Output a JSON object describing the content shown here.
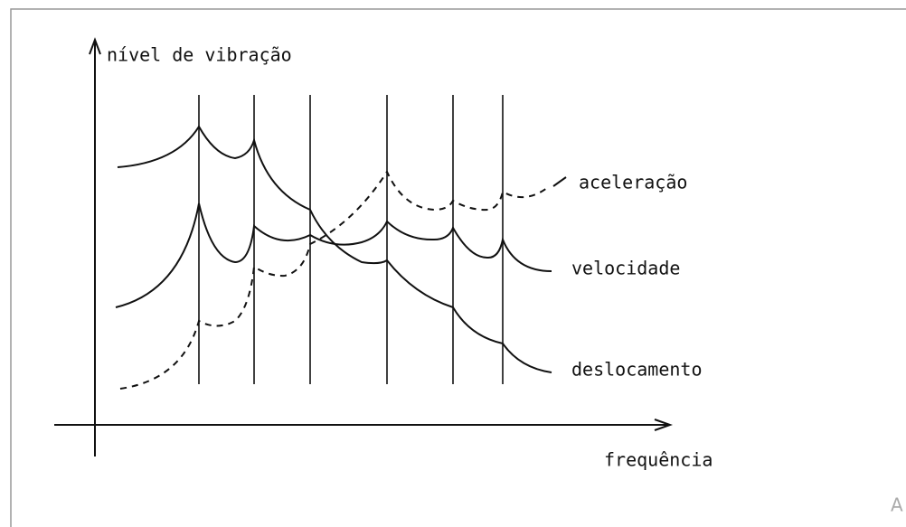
{
  "axes": {
    "y_label": "nível de vibração",
    "x_label": "frequência"
  },
  "curves": [
    {
      "label": "aceleração"
    },
    {
      "label": "velocidade"
    },
    {
      "label": "deslocamento"
    }
  ],
  "corner_text": "A"
}
